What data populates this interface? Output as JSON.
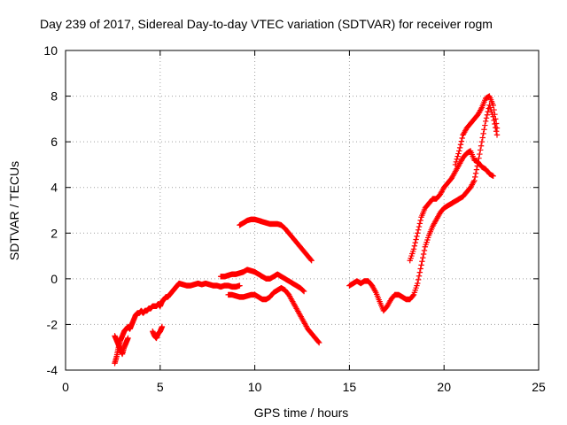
{
  "chart_data": {
    "type": "scatter",
    "title": "Day 239 of 2017, Sidereal Day-to-day VTEC variation (SDTVAR) for receiver rogm",
    "xlabel": "GPS time / hours",
    "ylabel": "SDTVAR / TECUs",
    "xlim": [
      0,
      25
    ],
    "ylim": [
      -4,
      10
    ],
    "xticks": [
      "0",
      "5",
      "10",
      "15",
      "20",
      "25"
    ],
    "yticks": [
      "-4",
      "-2",
      "0",
      "2",
      "4",
      "6",
      "8",
      "10"
    ],
    "grid": true,
    "marker": "+",
    "colors": {
      "series": "#ff0000",
      "grid": "#a0a0a0",
      "axis": "#000000"
    },
    "series": [
      {
        "x": [
          2.6,
          2.7,
          2.8,
          2.9,
          3.0,
          3.1,
          3.2,
          3.3,
          3.4,
          3.5,
          3.6,
          3.7,
          3.8,
          3.9,
          4.0,
          4.1,
          4.2,
          4.3,
          4.4,
          4.5,
          4.6,
          4.7,
          4.8,
          4.9,
          5.0,
          5.1,
          5.2,
          5.3,
          5.4,
          5.5,
          5.6,
          5.7,
          5.8,
          5.9,
          6.0,
          6.2,
          6.4,
          6.6,
          6.8,
          7.0,
          7.2,
          7.4,
          7.6,
          7.8,
          8.0,
          8.2,
          8.4,
          8.6,
          8.8,
          9.0,
          9.2
        ],
        "y": [
          -3.7,
          -3.4,
          -3.0,
          -2.7,
          -2.5,
          -2.3,
          -2.2,
          -2.1,
          -2.2,
          -2.0,
          -1.8,
          -1.6,
          -1.5,
          -1.5,
          -1.4,
          -1.5,
          -1.4,
          -1.4,
          -1.3,
          -1.3,
          -1.2,
          -1.2,
          -1.2,
          -1.1,
          -1.2,
          -1.0,
          -0.9,
          -0.8,
          -0.8,
          -0.7,
          -0.6,
          -0.5,
          -0.4,
          -0.3,
          -0.2,
          -0.25,
          -0.3,
          -0.3,
          -0.25,
          -0.2,
          -0.25,
          -0.2,
          -0.25,
          -0.3,
          -0.3,
          -0.35,
          -0.3,
          -0.3,
          -0.35,
          -0.35,
          -0.3
        ]
      },
      {
        "x": [
          2.6,
          2.7,
          2.8,
          2.9,
          3.0,
          3.1,
          3.2,
          3.3
        ],
        "y": [
          -2.5,
          -2.7,
          -2.9,
          -3.1,
          -3.3,
          -3.0,
          -2.8,
          -2.6
        ]
      },
      {
        "x": [
          4.6,
          4.7,
          4.8,
          4.9,
          5.0,
          5.1
        ],
        "y": [
          -2.3,
          -2.5,
          -2.6,
          -2.4,
          -2.3,
          -2.1
        ]
      },
      {
        "x": [
          8.6,
          8.8,
          9.0,
          9.2,
          9.4,
          9.6,
          9.8,
          10.0,
          10.2,
          10.4,
          10.6,
          10.8,
          11.0,
          11.2,
          11.4,
          11.6,
          11.8,
          12.0,
          12.2,
          12.4,
          12.6,
          12.8,
          13.0,
          13.2,
          13.4
        ],
        "y": [
          -0.7,
          -0.7,
          -0.75,
          -0.8,
          -0.8,
          -0.75,
          -0.7,
          -0.7,
          -0.8,
          -0.9,
          -0.9,
          -0.8,
          -0.6,
          -0.5,
          -0.4,
          -0.5,
          -0.7,
          -1.0,
          -1.3,
          -1.6,
          -1.9,
          -2.2,
          -2.4,
          -2.6,
          -2.8
        ]
      },
      {
        "x": [
          8.2,
          8.4,
          8.6,
          8.8,
          9.0,
          9.2,
          9.4,
          9.6,
          9.8,
          10.0,
          10.2,
          10.4,
          10.6,
          10.8,
          11.0,
          11.2,
          11.4,
          11.6,
          11.8,
          12.0,
          12.2,
          12.4,
          12.6
        ],
        "y": [
          0.1,
          0.1,
          0.15,
          0.2,
          0.2,
          0.25,
          0.3,
          0.4,
          0.35,
          0.3,
          0.2,
          0.1,
          0.0,
          0.0,
          0.1,
          0.2,
          0.1,
          0.0,
          -0.1,
          -0.2,
          -0.3,
          -0.4,
          -0.55
        ]
      },
      {
        "x": [
          9.2,
          9.4,
          9.6,
          9.8,
          10.0,
          10.2,
          10.4,
          10.6,
          10.8,
          11.0,
          11.2,
          11.4,
          11.6,
          11.8,
          12.0,
          12.2,
          12.4,
          12.6,
          12.8,
          13.0
        ],
        "y": [
          2.35,
          2.45,
          2.55,
          2.6,
          2.6,
          2.55,
          2.5,
          2.45,
          2.4,
          2.4,
          2.4,
          2.35,
          2.2,
          2.0,
          1.8,
          1.6,
          1.4,
          1.2,
          1.0,
          0.8
        ]
      },
      {
        "x": [
          15.0,
          15.2,
          15.4,
          15.6,
          15.8,
          16.0,
          16.2,
          16.4,
          16.6,
          16.8,
          17.0,
          17.2,
          17.4,
          17.6,
          17.8,
          18.0,
          18.2,
          18.4,
          18.6,
          18.8,
          19.0,
          19.2,
          19.4,
          19.6,
          19.8,
          20.0,
          20.2,
          20.4,
          20.6,
          20.8,
          21.0,
          21.2,
          21.4,
          21.6,
          21.8,
          22.0,
          22.2,
          22.4,
          22.6,
          22.8
        ],
        "y": [
          -0.3,
          -0.2,
          -0.1,
          -0.2,
          -0.1,
          -0.1,
          -0.3,
          -0.6,
          -1.0,
          -1.4,
          -1.2,
          -0.9,
          -0.7,
          -0.7,
          -0.8,
          -0.9,
          -0.9,
          -0.7,
          -0.2,
          0.6,
          1.4,
          1.9,
          2.3,
          2.6,
          2.9,
          3.1,
          3.2,
          3.3,
          3.4,
          3.5,
          3.6,
          3.8,
          4.0,
          4.3,
          5.1,
          6.0,
          6.9,
          7.6,
          7.1,
          6.3
        ]
      },
      {
        "x": [
          18.2,
          18.4,
          18.6,
          18.8,
          19.0,
          19.2,
          19.4,
          19.6,
          19.8,
          20.0,
          20.2,
          20.4,
          20.6,
          20.8,
          21.0,
          21.2,
          21.4,
          21.6,
          21.8,
          22.0,
          22.2,
          22.4,
          22.6
        ],
        "y": [
          0.8,
          1.3,
          2.0,
          2.7,
          3.1,
          3.3,
          3.5,
          3.5,
          3.7,
          4.0,
          4.2,
          4.4,
          4.7,
          5.0,
          5.3,
          5.5,
          5.6,
          5.2,
          5.1,
          4.9,
          4.8,
          4.6,
          4.5
        ]
      },
      {
        "x": [
          20.6,
          20.8,
          21.0,
          21.2,
          21.4,
          21.6,
          21.8,
          22.0,
          22.2,
          22.4,
          22.6,
          22.8
        ],
        "y": [
          5.0,
          5.6,
          6.3,
          6.6,
          6.8,
          7.0,
          7.2,
          7.5,
          7.9,
          8.0,
          7.6,
          6.6
        ]
      }
    ]
  }
}
